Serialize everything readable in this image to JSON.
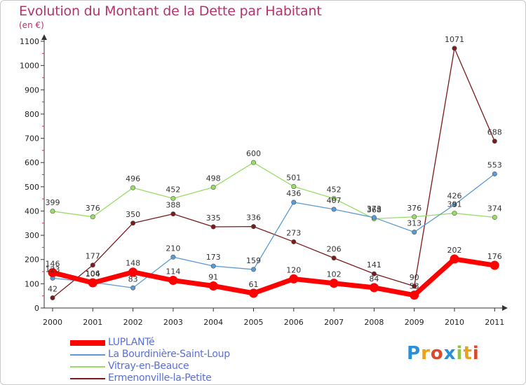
{
  "title": "Evolution du Montant de la Dette par Habitant",
  "subtitle": "(en €)",
  "logo": {
    "text": "Proxiti",
    "letters": [
      {
        "ch": "P",
        "color": "#2a8fd6"
      },
      {
        "ch": "r",
        "color": "#e8a21b"
      },
      {
        "ch": "o",
        "color": "#d84a2a"
      },
      {
        "ch": "x",
        "color": "#2a8fd6"
      },
      {
        "ch": "i",
        "color": "#8dc63f"
      },
      {
        "ch": "t",
        "color": "#e8a21b"
      },
      {
        "ch": "i",
        "color": "#d84a2a"
      }
    ]
  },
  "chart_data": {
    "type": "line",
    "title": "Evolution du Montant de la Dette par Habitant",
    "ylabel": "(en €)",
    "xlabel": "",
    "x": [
      "2000",
      "2001",
      "2002",
      "2003",
      "2004",
      "2005",
      "2006",
      "2007",
      "2008",
      "2009",
      "2010",
      "2011"
    ],
    "ylim": [
      0,
      1100
    ],
    "yticks": [
      0,
      100,
      200,
      300,
      400,
      500,
      600,
      700,
      800,
      900,
      1000,
      1100
    ],
    "grid": false,
    "legend_position": "bottom-left",
    "series": [
      {
        "name": "LUPLANTé",
        "color": "#ff0000",
        "width": "heavy",
        "values": [
          146,
          104,
          148,
          114,
          91,
          61,
          120,
          102,
          84,
          53,
          202,
          176
        ],
        "labels": [
          "146",
          "104",
          "148",
          "114",
          "91",
          "61",
          "120",
          "102",
          "84",
          "53",
          "202",
          "176"
        ]
      },
      {
        "name": "La Bourdinière-Saint-Loup",
        "color": "#5b9bd5",
        "width": "thin",
        "values": [
          123,
          106,
          83,
          210,
          173,
          159,
          436,
          407,
          373,
          313,
          426,
          553
        ],
        "labels": [
          "123",
          "106",
          "83",
          "210",
          "173",
          "159",
          "436",
          "407",
          "373",
          "313",
          "426",
          "553"
        ]
      },
      {
        "name": "Vitray-en-Beauce",
        "color": "#99dd66",
        "width": "thin",
        "values": [
          399,
          376,
          496,
          452,
          498,
          600,
          501,
          452,
          368,
          376,
          391,
          374
        ],
        "labels": [
          "399",
          "376",
          "496",
          "452",
          "498",
          "600",
          "501",
          "452",
          "368",
          "376",
          "391",
          "374"
        ]
      },
      {
        "name": "Ermenonville-la-Petite",
        "color": "#7a1a1a",
        "width": "thin",
        "values": [
          42,
          177,
          350,
          388,
          335,
          336,
          273,
          206,
          141,
          90,
          1071,
          688
        ],
        "labels": [
          "42",
          "177",
          "350",
          "388",
          "335",
          "336",
          "273",
          "206",
          "141",
          "90",
          "1071",
          "688"
        ]
      }
    ]
  }
}
